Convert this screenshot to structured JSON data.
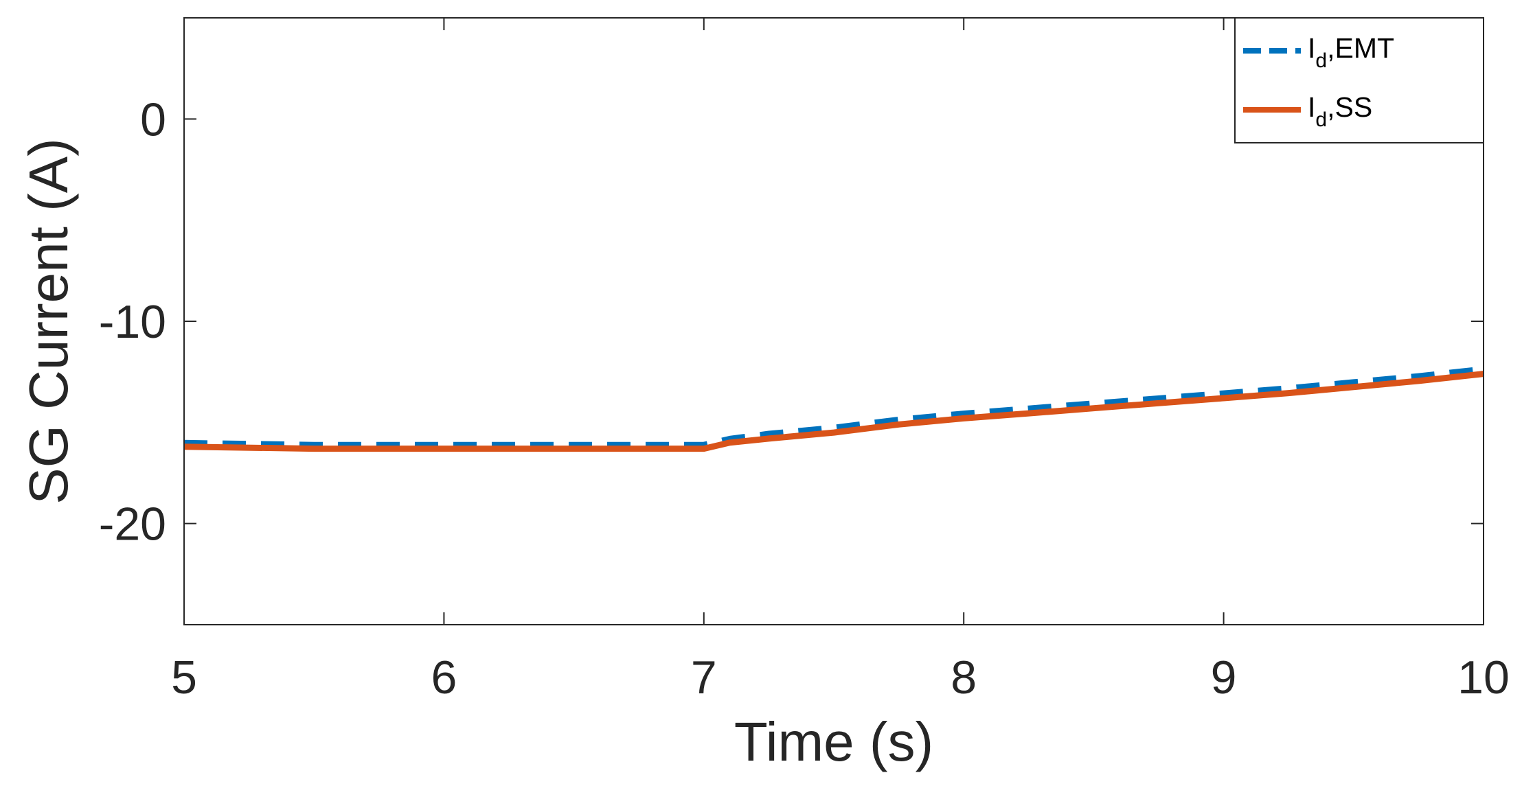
{
  "chart_data": {
    "type": "line",
    "title": "",
    "xlabel": "Time (s)",
    "ylabel": "SG Current (A)",
    "xlim": [
      5,
      10
    ],
    "ylim": [
      -25,
      5
    ],
    "xticks": [
      5,
      6,
      7,
      8,
      9,
      10
    ],
    "yticks": [
      -20,
      -10,
      0
    ],
    "xtick_labels": [
      "5",
      "6",
      "7",
      "8",
      "9",
      "10"
    ],
    "ytick_labels": [
      "-20",
      "-10",
      "0"
    ],
    "grid": false,
    "legend_position": "top-right",
    "series": [
      {
        "name": "I_d,EMT",
        "legend_main": "I",
        "legend_sub": "d",
        "legend_rest": ",EMT",
        "color": "#0072BD",
        "line_style": "dashed",
        "x": [
          5,
          5.5,
          6,
          6.5,
          7,
          7.1,
          7.25,
          7.5,
          7.75,
          8,
          8.25,
          8.5,
          8.75,
          9,
          9.25,
          9.5,
          9.75,
          10
        ],
        "y": [
          -16.0,
          -16.1,
          -16.1,
          -16.1,
          -16.1,
          -15.8,
          -15.55,
          -15.25,
          -14.85,
          -14.55,
          -14.3,
          -14.05,
          -13.8,
          -13.55,
          -13.3,
          -13.0,
          -12.7,
          -12.35
        ]
      },
      {
        "name": "I_d,SS",
        "legend_main": "I",
        "legend_sub": "d",
        "legend_rest": ",SS",
        "color": "#D95319",
        "line_style": "solid",
        "x": [
          5,
          5.5,
          6,
          6.5,
          7,
          7.1,
          7.25,
          7.5,
          7.75,
          8,
          8.25,
          8.5,
          8.75,
          9,
          9.25,
          9.5,
          9.75,
          10
        ],
        "y": [
          -16.2,
          -16.3,
          -16.3,
          -16.3,
          -16.3,
          -16.0,
          -15.8,
          -15.5,
          -15.1,
          -14.8,
          -14.55,
          -14.3,
          -14.05,
          -13.8,
          -13.55,
          -13.25,
          -12.95,
          -12.6
        ]
      }
    ]
  }
}
